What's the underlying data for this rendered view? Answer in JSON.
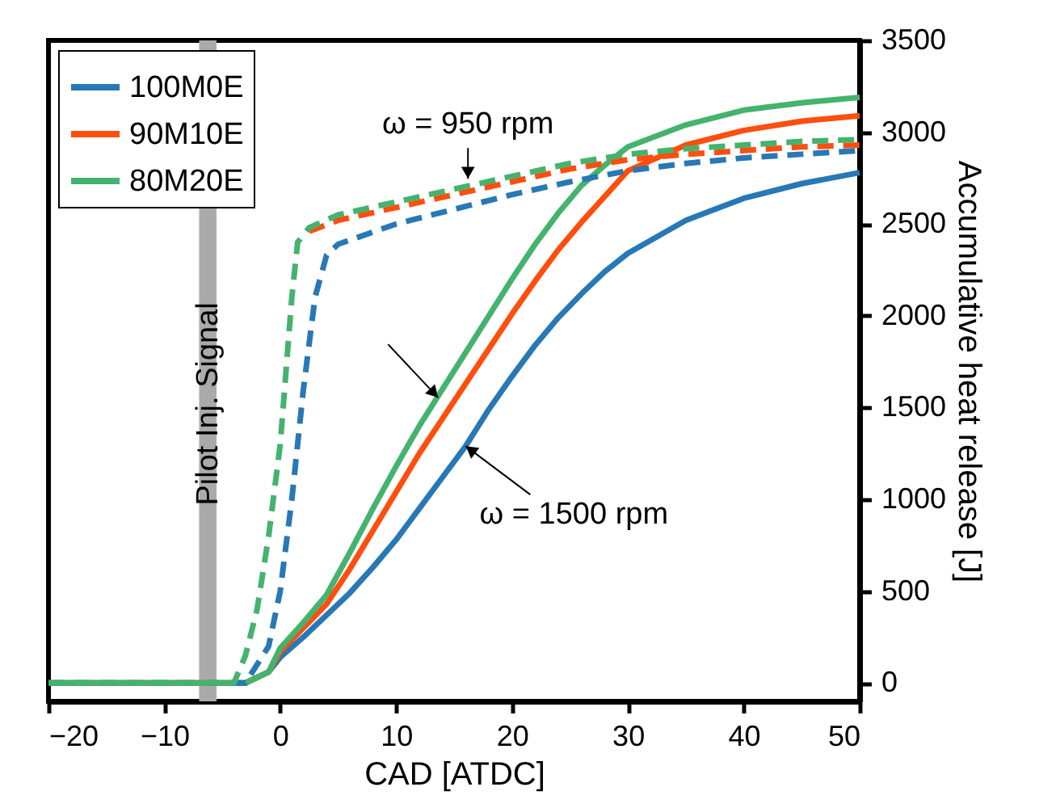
{
  "chart_data": {
    "type": "line",
    "xlabel": "CAD [ATDC]",
    "ylabel": "Accumulative heat release [J]",
    "xlim": [
      -20,
      50
    ],
    "xticks": [
      -20,
      -10,
      0,
      10,
      20,
      30,
      40,
      50
    ],
    "ylim": [
      -100,
      3500
    ],
    "yticks": [
      0,
      500,
      1000,
      1500,
      2000,
      2500,
      3000,
      3500
    ],
    "grid": false,
    "legend": "top left",
    "series": [
      {
        "name": "100M0E",
        "color": "#2878b5",
        "line_style": "solid",
        "x": [
          -20,
          -3,
          -1,
          0,
          2,
          4,
          6,
          8,
          10,
          12,
          14,
          16,
          18,
          20,
          22,
          24,
          26,
          28,
          30,
          35,
          40,
          45,
          50
        ],
        "values": [
          0,
          0,
          60,
          140,
          250,
          370,
          490,
          630,
          780,
          950,
          1120,
          1290,
          1490,
          1670,
          1840,
          1990,
          2120,
          2240,
          2340,
          2520,
          2640,
          2720,
          2780
        ]
      },
      {
        "name": "90M10E",
        "color": "#ff4e0e",
        "line_style": "solid",
        "x": [
          -20,
          -3,
          -1,
          0,
          2,
          4,
          6,
          8,
          10,
          12,
          14,
          16,
          18,
          20,
          22,
          24,
          26,
          28,
          30,
          35,
          40,
          45,
          50
        ],
        "values": [
          0,
          0,
          60,
          170,
          300,
          430,
          620,
          830,
          1040,
          1250,
          1440,
          1630,
          1820,
          2010,
          2190,
          2360,
          2510,
          2650,
          2790,
          2930,
          3010,
          3060,
          3090
        ]
      },
      {
        "name": "80M20E",
        "color": "#45b36e",
        "line_style": "solid",
        "x": [
          -20,
          -3,
          -1,
          0,
          2,
          4,
          6,
          8,
          10,
          12,
          14,
          16,
          18,
          20,
          22,
          24,
          26,
          28,
          30,
          35,
          40,
          45,
          50
        ],
        "values": [
          0,
          0,
          60,
          190,
          330,
          480,
          710,
          950,
          1180,
          1400,
          1600,
          1800,
          2000,
          2200,
          2390,
          2560,
          2710,
          2820,
          2920,
          3040,
          3120,
          3160,
          3190
        ]
      },
      {
        "color": "#2878b5",
        "line_style": "dashed",
        "x": [
          -20,
          -3,
          -1,
          0,
          1,
          2,
          3,
          4,
          5,
          10,
          15,
          20,
          25,
          30,
          35,
          40,
          45,
          50
        ],
        "values": [
          0,
          0,
          200,
          500,
          1000,
          1600,
          2100,
          2330,
          2390,
          2500,
          2580,
          2660,
          2730,
          2790,
          2830,
          2860,
          2880,
          2900
        ]
      },
      {
        "color": "#ff4e0e",
        "line_style": "dashed",
        "x": [
          2.5,
          5,
          10,
          15,
          20,
          25,
          30,
          35,
          40,
          45,
          50
        ],
        "values": [
          2460,
          2520,
          2590,
          2660,
          2730,
          2800,
          2850,
          2880,
          2900,
          2920,
          2930
        ]
      },
      {
        "color": "#45b36e",
        "line_style": "dashed",
        "x": [
          -20,
          -4,
          -3,
          -2,
          -1,
          0,
          0.5,
          1,
          1.5,
          2.5,
          5,
          10,
          15,
          20,
          25,
          30,
          35,
          40,
          45,
          50
        ],
        "values": [
          0,
          0,
          150,
          400,
          800,
          1300,
          1700,
          2100,
          2400,
          2480,
          2550,
          2620,
          2690,
          2760,
          2830,
          2880,
          2910,
          2930,
          2950,
          2960
        ]
      }
    ],
    "bands": [
      {
        "axis": "x",
        "from": -7,
        "to": -5.5,
        "label": "Pilot Inj. Signal",
        "color": "#aaaaaa"
      }
    ],
    "annotations": [
      {
        "text": "ω = 950 rpm",
        "x": 16.2,
        "y": 2720
      },
      {
        "text": "ω = 1500 rpm",
        "x": 16,
        "y": 1290
      }
    ]
  }
}
